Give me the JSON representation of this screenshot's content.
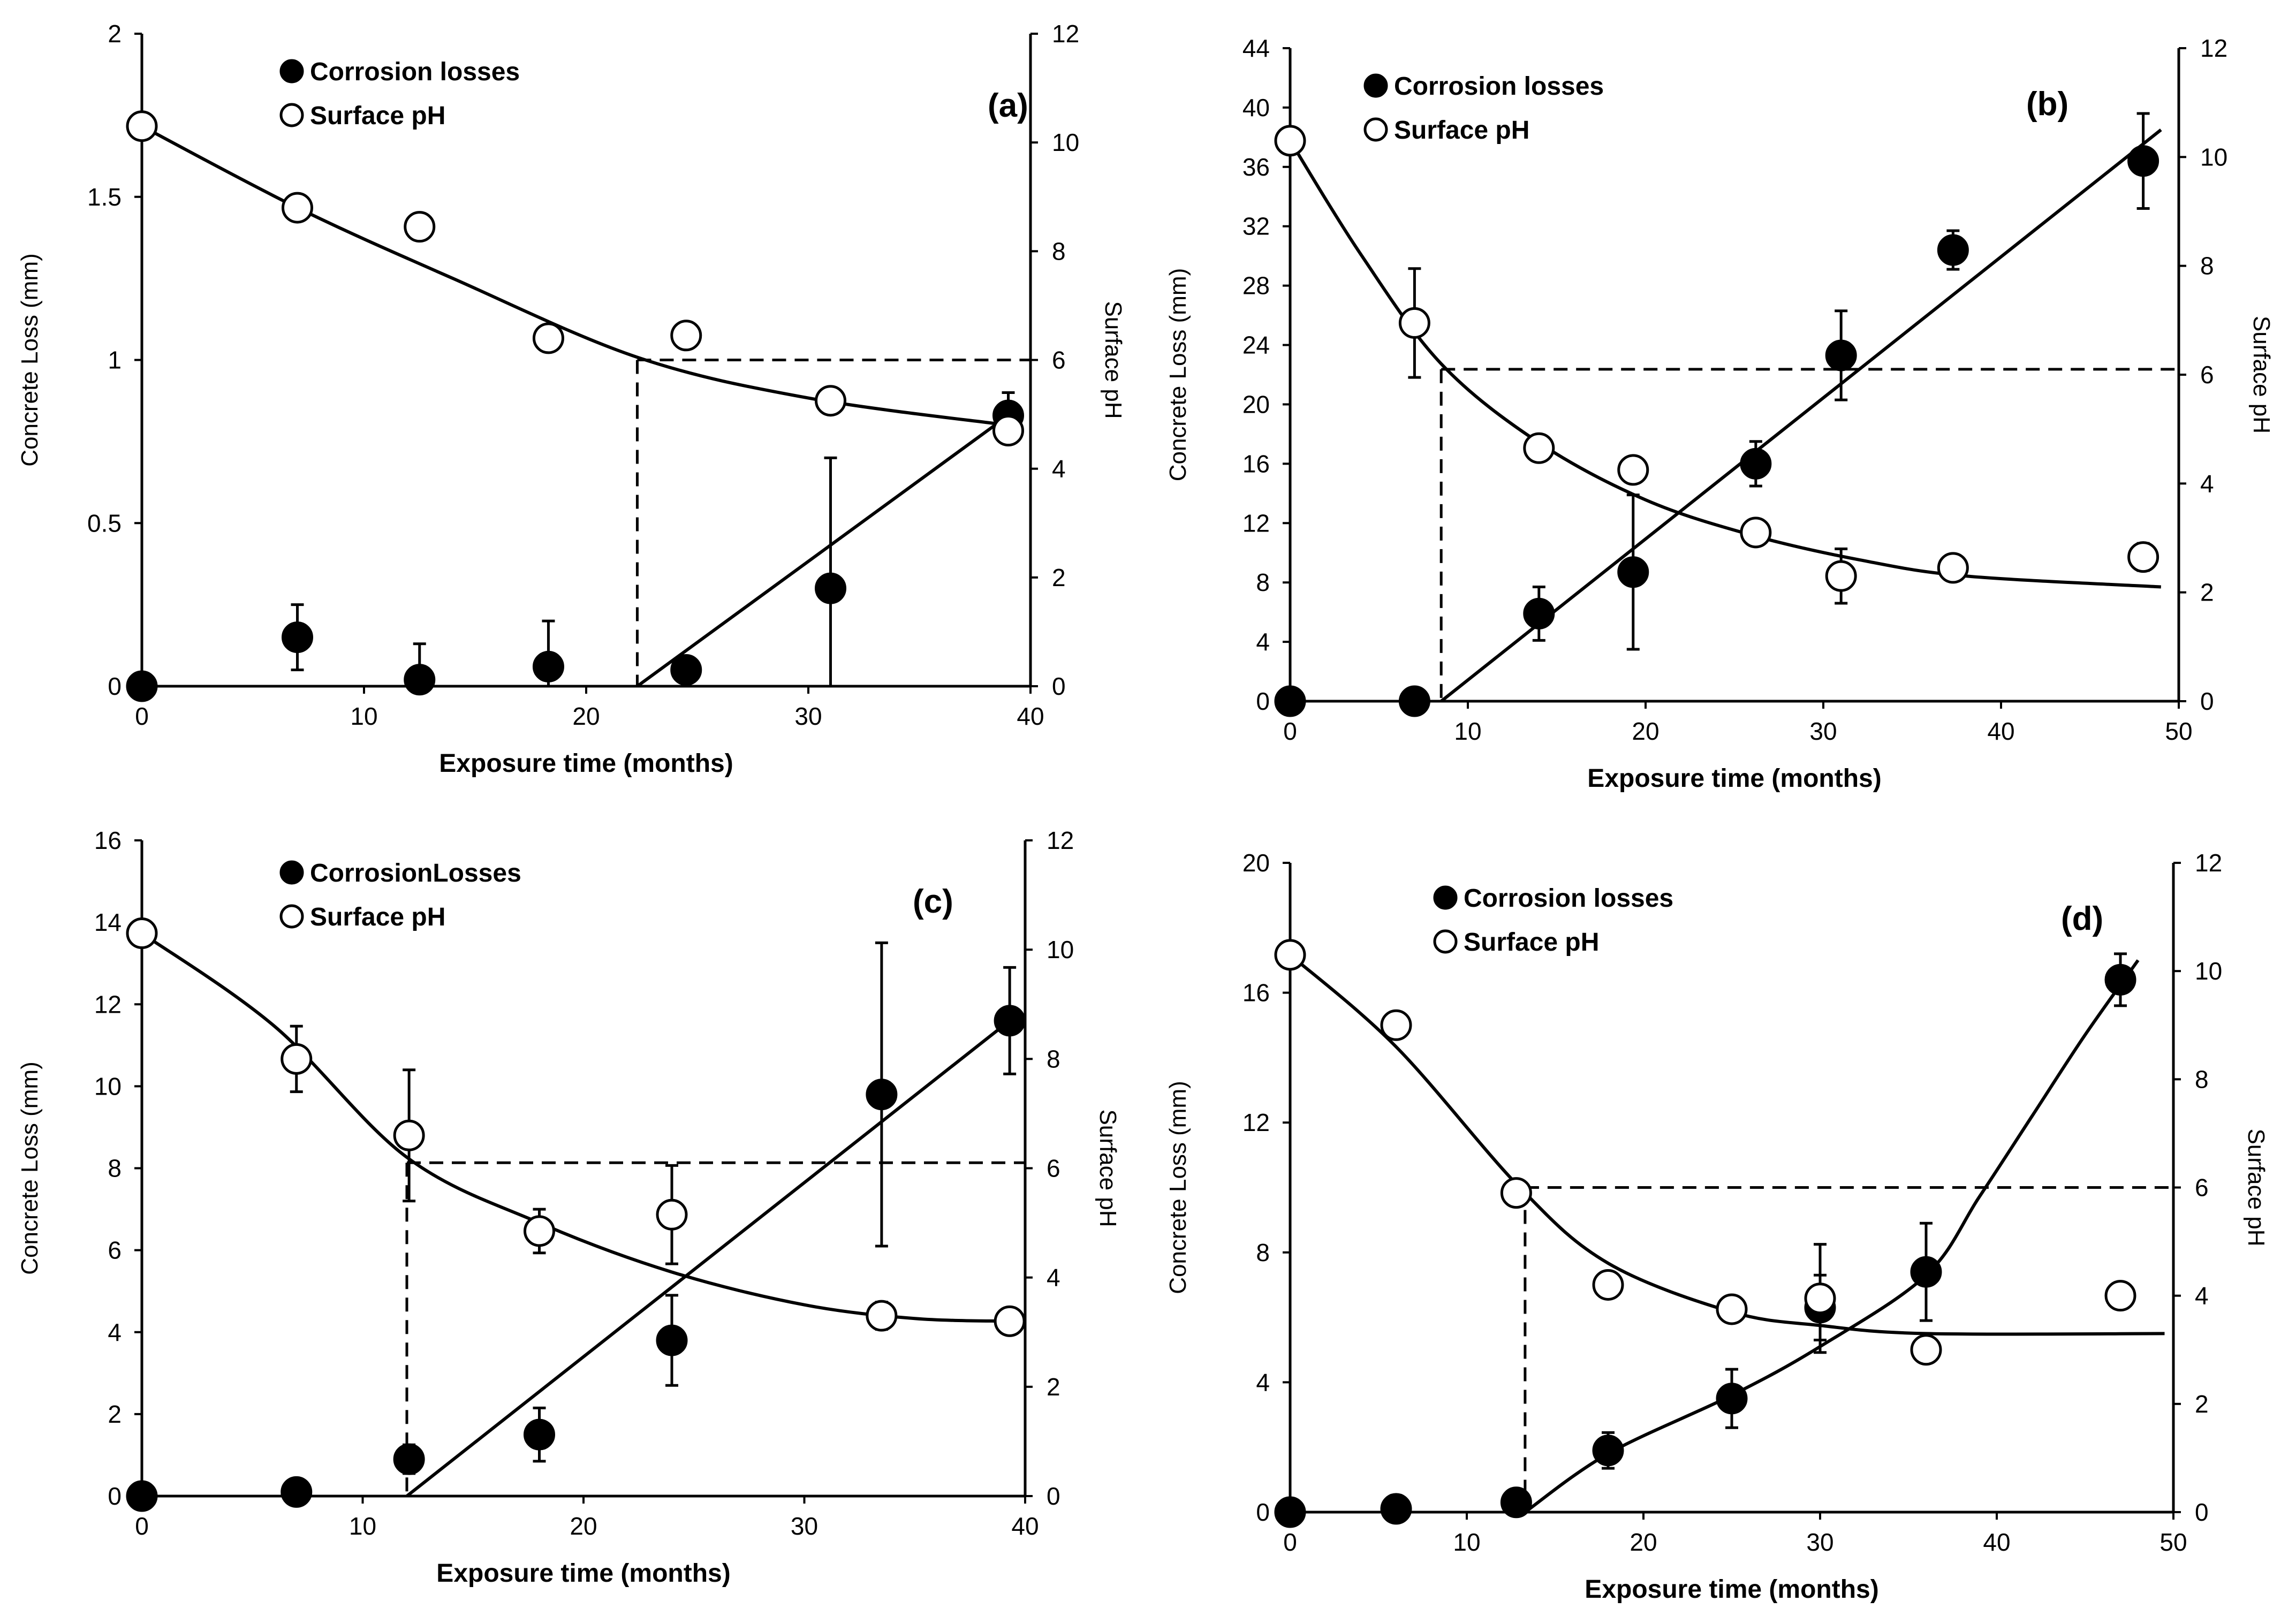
{
  "chart_data": [
    {
      "type": "scatter",
      "panel_label": "(a)",
      "xlabel": "Exposure time (months)",
      "ylabel": "Concrete Loss (mm)",
      "y2label": "Surface pH",
      "xlim": [
        0,
        40
      ],
      "ylim": [
        0,
        2
      ],
      "y2lim": [
        0,
        12
      ],
      "xticks": [
        "0",
        "10",
        "20",
        "30",
        "40"
      ],
      "yticks": [
        "0",
        "0.5",
        "1",
        "1.5",
        "2"
      ],
      "y2ticks": [
        "0",
        "2",
        "4",
        "6",
        "8",
        "10",
        "12"
      ],
      "legend": [
        "Corrosion losses",
        "Surface pH"
      ],
      "series": [
        {
          "name": "Corrosion losses",
          "axis": "left",
          "marker": "filled",
          "x": [
            0,
            7,
            12.5,
            18.3,
            24.5,
            31,
            39
          ],
          "y": [
            0,
            0.15,
            0.02,
            0.06,
            0.05,
            0.3,
            0.83
          ],
          "err": [
            0,
            0.1,
            0.11,
            0.14,
            0,
            0.4,
            0.07
          ]
        },
        {
          "name": "Surface pH",
          "axis": "right",
          "marker": "open",
          "x": [
            0,
            7,
            12.5,
            18.3,
            24.5,
            31,
            39
          ],
          "y": [
            10.3,
            8.8,
            8.45,
            6.4,
            6.45,
            5.25,
            4.7
          ],
          "err": [
            0,
            0,
            0,
            0,
            0,
            0,
            0
          ]
        }
      ],
      "loss_fit": {
        "x0": 22.3,
        "x1": 39,
        "y1": 0.83
      },
      "ph_fit": [
        [
          0,
          10.3
        ],
        [
          7,
          8.8
        ],
        [
          14,
          7.5
        ],
        [
          22.3,
          6.05
        ],
        [
          30,
          5.3
        ],
        [
          39,
          4.8
        ]
      ],
      "threshold": {
        "x": 22.3,
        "ph": 6,
        "x_end": 40
      }
    },
    {
      "type": "scatter",
      "panel_label": "(b)",
      "xlabel": "Exposure time (months)",
      "ylabel": "Concrete Loss (mm)",
      "y2label": "Surface pH",
      "xlim": [
        0,
        50
      ],
      "ylim": [
        0,
        44
      ],
      "y2lim": [
        0,
        12
      ],
      "xticks": [
        "0",
        "10",
        "20",
        "30",
        "40",
        "50"
      ],
      "yticks": [
        "0",
        "4",
        "8",
        "12",
        "16",
        "20",
        "24",
        "28",
        "32",
        "36",
        "40",
        "44"
      ],
      "y2ticks": [
        "0",
        "2",
        "4",
        "6",
        "8",
        "10",
        "12"
      ],
      "legend": [
        "Corrosion losses",
        "Surface pH"
      ],
      "series": [
        {
          "name": "Corrosion losses",
          "axis": "left",
          "marker": "filled",
          "x": [
            0,
            7,
            14,
            19.3,
            26.2,
            31,
            37.3,
            48
          ],
          "y": [
            0,
            0,
            5.9,
            8.7,
            16,
            23.3,
            30.4,
            36.4
          ],
          "err": [
            0,
            0,
            1.8,
            5.2,
            1.5,
            3,
            1.3,
            3.2
          ]
        },
        {
          "name": "Surface pH",
          "axis": "right",
          "marker": "open",
          "x": [
            0,
            7,
            14,
            19.3,
            26.2,
            31,
            37.3,
            48
          ],
          "y": [
            10.3,
            6.95,
            4.65,
            4.25,
            3.1,
            2.3,
            2.45,
            2.65
          ],
          "err": [
            0,
            1,
            0,
            0,
            0,
            0.5,
            0,
            0.25
          ]
        }
      ],
      "loss_fit": {
        "x0": 8.5,
        "x1": 49,
        "y1": 38.5
      },
      "ph_fit": [
        [
          0,
          10.3
        ],
        [
          4,
          8.2
        ],
        [
          8.5,
          6.2
        ],
        [
          14,
          4.75
        ],
        [
          20,
          3.7
        ],
        [
          26,
          3.05
        ],
        [
          32,
          2.6
        ],
        [
          38,
          2.3
        ],
        [
          49,
          2.1
        ]
      ],
      "threshold": {
        "x": 8.5,
        "ph": 6.1,
        "x_end": 50
      }
    },
    {
      "type": "scatter",
      "panel_label": "(c)",
      "xlabel": "Exposure time (months)",
      "ylabel": "Concrete Loss (mm)",
      "y2label": "Surface pH",
      "xlim": [
        0,
        40
      ],
      "ylim": [
        0,
        16
      ],
      "y2lim": [
        0,
        12
      ],
      "xticks": [
        "0",
        "10",
        "20",
        "30",
        "40"
      ],
      "yticks": [
        "0",
        "2",
        "4",
        "6",
        "8",
        "10",
        "12",
        "14",
        "16"
      ],
      "y2ticks": [
        "0",
        "2",
        "4",
        "6",
        "8",
        "10",
        "12"
      ],
      "legend": [
        "CorrosionLosses",
        "Surface pH"
      ],
      "series": [
        {
          "name": "CorrosionLosses",
          "axis": "left",
          "marker": "filled",
          "x": [
            0,
            7,
            12.1,
            18,
            24,
            33.5,
            39.3
          ],
          "y": [
            0,
            0.1,
            0.9,
            1.5,
            3.8,
            9.8,
            11.6
          ],
          "err": [
            0,
            0,
            0.35,
            0.65,
            1.1,
            3.7,
            1.3
          ]
        },
        {
          "name": "Surface pH",
          "axis": "right",
          "marker": "open",
          "x": [
            0,
            7,
            12.1,
            18,
            24,
            33.5,
            39.3
          ],
          "y": [
            10.3,
            8,
            6.6,
            4.85,
            5.15,
            3.3,
            3.2
          ],
          "err": [
            0,
            0.6,
            1.2,
            0.4,
            0.9,
            0.25,
            0
          ]
        }
      ],
      "loss_fit": {
        "x0": 12,
        "x1": 39.3,
        "y1": 11.6
      },
      "ph_fit": [
        [
          0,
          10.3
        ],
        [
          6,
          8.6
        ],
        [
          12,
          6.2
        ],
        [
          18,
          5
        ],
        [
          24,
          4.1
        ],
        [
          30,
          3.5
        ],
        [
          35,
          3.25
        ],
        [
          39.3,
          3.2
        ]
      ],
      "threshold": {
        "x": 12,
        "ph": 6.1,
        "x_end": 40
      }
    },
    {
      "type": "scatter",
      "panel_label": "(d)",
      "xlabel": "Exposure time (months)",
      "ylabel": "Concrete Loss (mm)",
      "y2label": "Surface pH",
      "xlim": [
        0,
        50
      ],
      "ylim": [
        0,
        20
      ],
      "y2lim": [
        0,
        12
      ],
      "xticks": [
        "0",
        "10",
        "20",
        "30",
        "40",
        "50"
      ],
      "yticks": [
        "0",
        "4",
        "8",
        "12",
        "16",
        "20"
      ],
      "y2ticks": [
        "0",
        "2",
        "4",
        "6",
        "8",
        "10",
        "12"
      ],
      "legend": [
        "Corrosion losses",
        "Surface pH"
      ],
      "series": [
        {
          "name": "Corrosion losses",
          "axis": "left",
          "marker": "filled",
          "x": [
            0,
            6,
            12.8,
            18,
            25,
            30,
            36,
            47
          ],
          "y": [
            0,
            0.1,
            0.3,
            1.9,
            3.5,
            6.3,
            7.4,
            16.4
          ],
          "err": [
            0,
            0,
            0,
            0.55,
            0.9,
            1,
            1.5,
            0.8
          ]
        },
        {
          "name": "Surface pH",
          "axis": "right",
          "marker": "open",
          "x": [
            0,
            6,
            12.8,
            18,
            25,
            30,
            36,
            47
          ],
          "y": [
            10.3,
            9,
            5.9,
            4.2,
            3.75,
            3.95,
            3,
            4
          ],
          "err": [
            0,
            0,
            0,
            0,
            0,
            1,
            0,
            0
          ]
        }
      ],
      "loss_fit": [
        [
          13.3,
          0
        ],
        [
          18,
          1.8
        ],
        [
          25,
          3.6
        ],
        [
          30,
          5.1
        ],
        [
          36,
          7.3
        ],
        [
          39,
          9.7
        ],
        [
          42,
          12.2
        ],
        [
          45,
          14.7
        ],
        [
          48,
          17
        ]
      ],
      "ph_fit": [
        [
          0,
          10.3
        ],
        [
          6,
          8.6
        ],
        [
          13,
          6
        ],
        [
          18,
          4.6
        ],
        [
          25,
          3.7
        ],
        [
          30,
          3.45
        ],
        [
          36,
          3.3
        ],
        [
          49.5,
          3.3
        ]
      ],
      "threshold": {
        "x": 13.3,
        "ph": 6,
        "x_end": 50
      }
    }
  ]
}
